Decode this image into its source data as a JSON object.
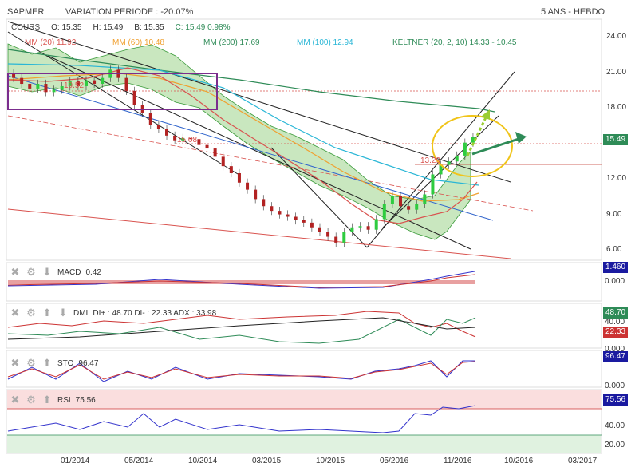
{
  "header": {
    "symbol": "SAPMER",
    "variation": "VARIATION PERIODE : -20.07%",
    "period": "5 ANS - HEBDO"
  },
  "quote": {
    "label": "COURS",
    "open": "O: 15.35",
    "high": "H: 15.49",
    "low": "B: 15.35",
    "close": "C: 15.49 0.98%"
  },
  "legend": {
    "mm20": "MM (20) 11.92",
    "mm50": "MM (60) 10.48",
    "mm200": "MM (200) 17.69",
    "mm100": "MM (100) 12.94",
    "keltner": "KELTNER (20, 2, 10) 14.33 - 10.45"
  },
  "price_axis": [
    "24.00",
    "21.00",
    "18.00",
    "15.00",
    "12.00",
    "9.00",
    "6.00"
  ],
  "price_tag": "15.49",
  "annotations": {
    "a1": "19.52",
    "a2": "15.08",
    "a3": "13.29"
  },
  "panels": {
    "macd": {
      "name": "MACD",
      "value": "0.42",
      "tags": [
        "1.460",
        "0.000"
      ]
    },
    "dmi": {
      "name": "DMI",
      "value": "DI+ : 48.70 DI- : 22.33 ADX : 33.98",
      "tags": [
        "48.70",
        "40.00",
        "22.33",
        "0.000"
      ]
    },
    "sto": {
      "name": "STO",
      "value": "96.47",
      "tags": [
        "96.47",
        "0.000"
      ]
    },
    "rsi": {
      "name": "RSI",
      "value": "75.56",
      "tags": [
        "75.56",
        "40.00",
        "20.00"
      ]
    }
  },
  "x_axis": [
    "01/2014",
    "05/2014",
    "10/2014",
    "03/2015",
    "10/2015",
    "05/2016",
    "11/2016",
    "10/2016",
    "03/2017"
  ],
  "colors": {
    "mm20": "#d9534f",
    "mm50": "#f0a030",
    "mm200": "#2e8b57",
    "mm100": "#29b6d6",
    "keltner": "#2e8b57",
    "band": "#bfe3b4"
  },
  "chart_data": {
    "type": "candlestick",
    "ylim": [
      5,
      25.5
    ],
    "close": [
      20.5,
      20,
      19.6,
      20,
      19.3,
      19.5,
      19.8,
      20.2,
      19.8,
      20.3,
      20,
      20.5,
      21.2,
      20.5,
      19.4,
      18.2,
      17.5,
      16.5,
      16.2,
      15.6,
      15.2,
      15.4,
      15.3,
      14.8,
      14.5,
      13.8,
      13,
      12.4,
      11.6,
      11,
      10.2,
      9.6,
      9.2,
      8.9,
      8.7,
      8.4,
      8.2,
      7.8,
      7.4,
      7,
      6.5,
      7.4,
      7.8,
      7.9,
      7.6,
      8.5,
      9.8,
      10.5,
      9.6,
      9.3,
      9.8,
      10.6,
      12.3,
      13.1,
      13.4,
      13.9,
      15.0,
      15.49
    ]
  }
}
